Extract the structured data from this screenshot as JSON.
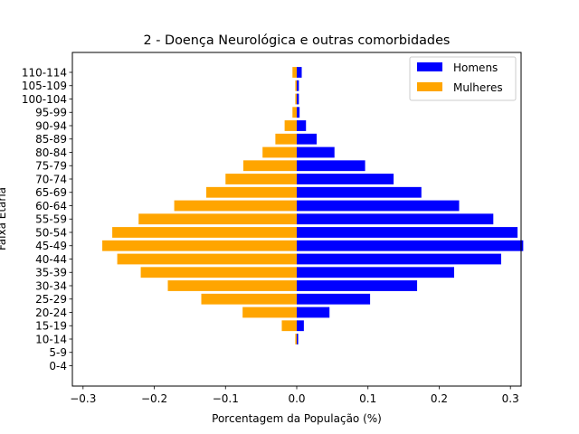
{
  "chart_data": {
    "type": "bar",
    "orientation": "horizontal",
    "title": "2 - Doença Neurológica e outras comorbidades",
    "xlabel": "Porcentagem da População (%)",
    "ylabel": "Faixa Etária",
    "xlim": [
      -0.315,
      0.315
    ],
    "xticks": [
      -0.3,
      -0.2,
      -0.1,
      0.0,
      0.1,
      0.2,
      0.3
    ],
    "xtick_labels": [
      "−0.3",
      "−0.2",
      "−0.1",
      "0.0",
      "0.1",
      "0.2",
      "0.3"
    ],
    "grid": false,
    "legend_position": "top-right",
    "categories": [
      "0-4",
      "5-9",
      "10-14",
      "15-19",
      "20-24",
      "25-29",
      "30-34",
      "35-39",
      "40-44",
      "45-49",
      "50-54",
      "55-59",
      "60-64",
      "65-69",
      "70-74",
      "75-79",
      "80-84",
      "85-89",
      "90-94",
      "95-99",
      "100-104",
      "105-109",
      "110-114"
    ],
    "series": [
      {
        "name": "Homens",
        "color": "#0000ff",
        "values": [
          0.0,
          0.0,
          0.002,
          0.01,
          0.046,
          0.103,
          0.169,
          0.221,
          0.287,
          0.318,
          0.31,
          0.276,
          0.228,
          0.175,
          0.136,
          0.096,
          0.053,
          0.028,
          0.013,
          0.004,
          0.003,
          0.003,
          0.007
        ]
      },
      {
        "name": "Mulheres",
        "color": "#ffa500",
        "values": [
          0.0,
          0.0,
          -0.002,
          -0.021,
          -0.076,
          -0.134,
          -0.181,
          -0.219,
          -0.252,
          -0.273,
          -0.259,
          -0.222,
          -0.172,
          -0.127,
          -0.1,
          -0.075,
          -0.048,
          -0.03,
          -0.017,
          -0.006,
          -0.002,
          -0.002,
          -0.006
        ]
      }
    ]
  }
}
